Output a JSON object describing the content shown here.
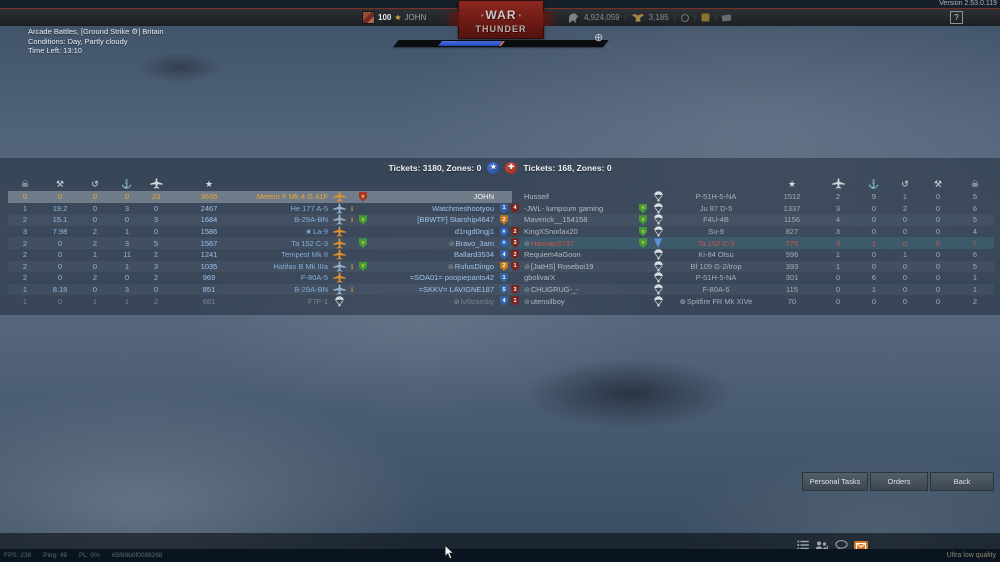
{
  "meta": {
    "version": "Version 2.53.0.119",
    "quality_label": "Ultra low quality"
  },
  "top_bar": {
    "player_level": "100",
    "player_name": "JOHN",
    "silver_lions": "4,924,059",
    "golden_eagles": "3,185",
    "help_label": "?",
    "icons": [
      "avatar",
      "star-icon",
      "silver-lion-icon",
      "golden-eagle-icon",
      "balloon-icon",
      "gift-icon",
      "card-icon",
      "help-icon"
    ]
  },
  "logo": {
    "title": "WAR",
    "subtitle": "THUNDER",
    "decoration": "*"
  },
  "battle_info": {
    "mode_line": "Arcade Battles, [Ground Strike ⚙] Britain",
    "conditions_line": "Conditions: Day, Partly cloudy",
    "time_line": "Time Left: 13:10"
  },
  "hud": {
    "crosshair_icon": "crosshair-icon",
    "progress_fill_percent": 29,
    "progress_fill_start_percent": 21
  },
  "tickets": {
    "allies": "Tickets: 3180, Zones: 0",
    "enemies": "Tickets: 168, Zones: 0",
    "allies_roundel": "blue-star-roundel",
    "enemies_roundel": "red-cross-roundel"
  },
  "scoreboard": {
    "left_columns": [
      "deaths-icon",
      "ground-kills-icon",
      "assists-icon",
      "naval-kills-icon",
      "air-kills-icon",
      "score-icon"
    ],
    "right_columns": [
      "score-icon",
      "air-kills-icon",
      "naval-kills-icon",
      "assists-icon",
      "ground-kills-icon",
      "deaths-icon"
    ],
    "left_rows": [
      {
        "stats": [
          "0",
          "0",
          "0",
          "0",
          "23"
        ],
        "score": "3635",
        "vehicle": "Meteor F Mk 4 G.41F",
        "marker": "",
        "plane": "orange",
        "info": false,
        "green": false,
        "medal": true,
        "muted": false,
        "player": "JOHN",
        "badge": null,
        "state": "self"
      },
      {
        "stats": [
          "1",
          "19.2",
          "0",
          "3",
          "0"
        ],
        "score": "2467",
        "vehicle": "He 177 A-5",
        "marker": "",
        "plane": "grey",
        "info": true,
        "green": false,
        "medal": false,
        "muted": false,
        "player": "Watchmeshootyou",
        "badge": {
          "style": "blue",
          "num": "1"
        },
        "state": "alive"
      },
      {
        "stats": [
          "2",
          "15.1",
          "0",
          "0",
          "3"
        ],
        "score": "1684",
        "vehicle": "B-29A-BN",
        "marker": "",
        "plane": "grey",
        "info": true,
        "green": true,
        "medal": false,
        "muted": false,
        "player": "[BBWTF] Starship4647",
        "badge": {
          "style": "orange",
          "num": "2"
        },
        "state": "alive"
      },
      {
        "stats": [
          "3",
          "7.98",
          "2",
          "1",
          "0"
        ],
        "score": "1586",
        "vehicle": "La-9",
        "marker": "★",
        "plane": "orange",
        "info": false,
        "green": false,
        "medal": false,
        "muted": false,
        "player": "d1ngd0ngj1",
        "badge": {
          "style": "circle-star",
          "num": "★"
        },
        "state": "alive"
      },
      {
        "stats": [
          "2",
          "0",
          "2",
          "3",
          "5"
        ],
        "score": "1567",
        "vehicle": "Ta 152 C-3",
        "marker": "",
        "plane": "orange",
        "info": false,
        "green": true,
        "medal": false,
        "muted": true,
        "player": "Bravo_3am",
        "badge": {
          "style": "circle-star",
          "num": "★"
        },
        "state": "alive"
      },
      {
        "stats": [
          "2",
          "0",
          "1",
          "11",
          "2"
        ],
        "score": "1241",
        "vehicle": "Tempest Mk II",
        "marker": "",
        "plane": "orange",
        "info": false,
        "green": false,
        "medal": false,
        "muted": false,
        "player": "Ballard3534",
        "badge": {
          "style": "blue",
          "num": "4"
        },
        "state": "alive"
      },
      {
        "stats": [
          "2",
          "0",
          "0",
          "1",
          "3"
        ],
        "score": "1035",
        "vehicle": "Halifax B Mk IIIa",
        "marker": "",
        "plane": "grey",
        "info": true,
        "green": true,
        "medal": false,
        "muted": true,
        "player": "RufusDingo",
        "badge": {
          "style": "orange",
          "num": "2"
        },
        "state": "alive"
      },
      {
        "stats": [
          "2",
          "0",
          "2",
          "0",
          "2"
        ],
        "score": "969",
        "vehicle": "F-80A-5",
        "marker": "",
        "plane": "orange",
        "info": false,
        "green": false,
        "medal": false,
        "muted": false,
        "player": "=SOA01= poopiepants42",
        "badge": {
          "style": "blue",
          "num": "1"
        },
        "state": "alive"
      },
      {
        "stats": [
          "1",
          "8.18",
          "0",
          "3",
          "0"
        ],
        "score": "851",
        "vehicle": "B-29A-BN",
        "marker": "",
        "plane": "grey",
        "info": true,
        "green": false,
        "medal": false,
        "muted": false,
        "player": "=SKKV= LAVIGNE187",
        "badge": {
          "style": "blue",
          "num": "5"
        },
        "state": "alive"
      },
      {
        "stats": [
          "1",
          "0",
          "1",
          "1",
          "2"
        ],
        "score": "681",
        "vehicle": "F7F-1",
        "marker": "",
        "plane": "chute",
        "info": false,
        "green": false,
        "medal": false,
        "muted": true,
        "player": "lvl9zamby",
        "badge": {
          "style": "blue",
          "num": "4"
        },
        "state": "dead"
      }
    ],
    "right_rows": [
      {
        "level": null,
        "muted": false,
        "player": "Husseif",
        "green": false,
        "chute": "white",
        "vehicle": "P-51H-5-NA",
        "marker": "",
        "score": "1512",
        "stats": [
          "2",
          "9",
          "1",
          "0",
          "5"
        ],
        "state": "normal"
      },
      {
        "level": "4",
        "muted": false,
        "player": "-JWL- lumpsum gaming",
        "green": true,
        "chute": "white",
        "vehicle": "Ju 87 D-5",
        "marker": "",
        "score": "1337",
        "stats": [
          "3",
          "0",
          "2",
          "0",
          "6"
        ],
        "state": "normal"
      },
      {
        "level": null,
        "muted": false,
        "player": "Maverick__154158",
        "green": true,
        "chute": "white",
        "vehicle": "F4U-4B",
        "marker": "",
        "score": "1156",
        "stats": [
          "4",
          "0",
          "0",
          "0",
          "5"
        ],
        "state": "normal"
      },
      {
        "level": "2",
        "muted": false,
        "player": "KingXSnorlax20",
        "green": true,
        "chute": "white",
        "vehicle": "Su-9",
        "marker": "",
        "score": "827",
        "stats": [
          "3",
          "0",
          "0",
          "0",
          "4"
        ],
        "state": "normal"
      },
      {
        "level": "3",
        "muted": true,
        "player": "Hannan3737",
        "green": true,
        "chute": "blue",
        "vehicle": "Ta 152 C-3",
        "marker": "",
        "score": "775",
        "stats": [
          "3",
          "1",
          "0",
          "0",
          "7"
        ],
        "state": "highlight"
      },
      {
        "level": "2",
        "muted": false,
        "player": "Requiem4aGoon",
        "green": false,
        "chute": "white",
        "vehicle": "Ki-84 Otsu",
        "marker": "",
        "score": "596",
        "stats": [
          "1",
          "0",
          "1",
          "0",
          "6"
        ],
        "state": "normal"
      },
      {
        "level": "1",
        "muted": true,
        "player": "[JatHS] Roseboi19",
        "green": false,
        "chute": "white",
        "vehicle": "Bf 109 G-2/trop",
        "marker": "",
        "score": "393",
        "stats": [
          "1",
          "0",
          "0",
          "0",
          "5"
        ],
        "state": "normal"
      },
      {
        "level": null,
        "muted": false,
        "player": "gbolivarX",
        "green": false,
        "chute": "white",
        "vehicle": "P-51H-5-NA",
        "marker": "",
        "score": "301",
        "stats": [
          "0",
          "6",
          "0",
          "0",
          "1"
        ],
        "state": "normal"
      },
      {
        "level": "3",
        "muted": true,
        "player": "CHUGRUG-_-",
        "green": false,
        "chute": "white",
        "vehicle": "F-80A-5",
        "marker": "",
        "score": "115",
        "stats": [
          "0",
          "1",
          "0",
          "0",
          "1"
        ],
        "state": "normal"
      },
      {
        "level": "1",
        "muted": true,
        "player": "utensilboy",
        "green": false,
        "chute": "white",
        "vehicle": "Spitfire FR Mk XIVe",
        "marker": "⊕",
        "score": "70",
        "stats": [
          "0",
          "0",
          "0",
          "0",
          "2"
        ],
        "state": "normal"
      }
    ]
  },
  "footer": {
    "buttons": [
      "Personal Tasks",
      "Orders",
      "Back"
    ],
    "status_icons": [
      "objectives-list-icon",
      "squad-icon",
      "chat-icon",
      "mail-icon"
    ],
    "squad_count": "1"
  },
  "status_bar": {
    "fps": "FPS: 238",
    "ping": "Ping: 49",
    "packet_loss": "PL: 0%",
    "session": "65f89b0f0086268"
  },
  "colors": {
    "self_accent": "#eda32f",
    "ally_blue": "#8fb9e6",
    "enemy_grey": "#a6aeb6",
    "enemy_highlight_red": "#d4524a",
    "mail_accent": "#d97a28",
    "logo_red": "#8c2721"
  }
}
